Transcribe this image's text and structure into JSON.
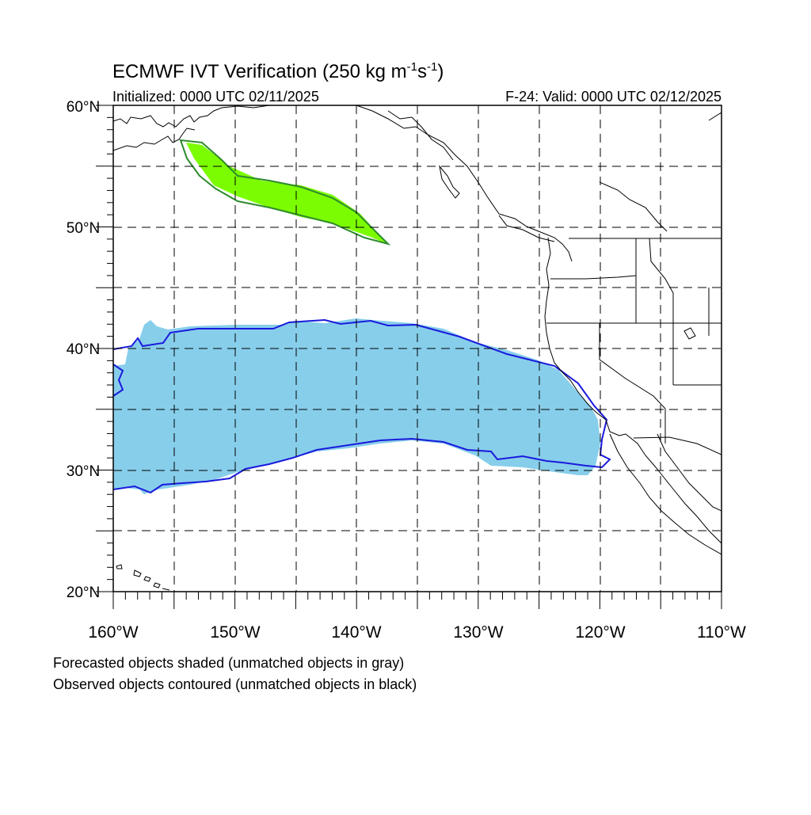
{
  "title": {
    "main_prefix": "ECMWF IVT Verification (250 kg m",
    "sup1": "-1",
    "mid": "s",
    "sup2": "-1",
    "suffix": ")"
  },
  "initialized_label": "Initialized: 0000 UTC 02/11/2025",
  "valid_label": "F-24: Valid: 0000 UTC 02/12/2025",
  "lat_labels": [
    "60°N",
    "50°N",
    "40°N",
    "30°N",
    "20°N"
  ],
  "lon_labels": [
    "160°W",
    "150°W",
    "140°W",
    "130°W",
    "120°W",
    "110°W"
  ],
  "footnotes": [
    "Forecasted objects shaded (unmatched objects in gray)",
    "Observed objects contoured (unmatched objects in black)"
  ],
  "colors": {
    "north_object_fill": "#7cfc00",
    "north_object_contour": "#2e8b2e",
    "south_object_fill": "#87ceeb",
    "south_object_contour": "#1a1adc"
  }
}
